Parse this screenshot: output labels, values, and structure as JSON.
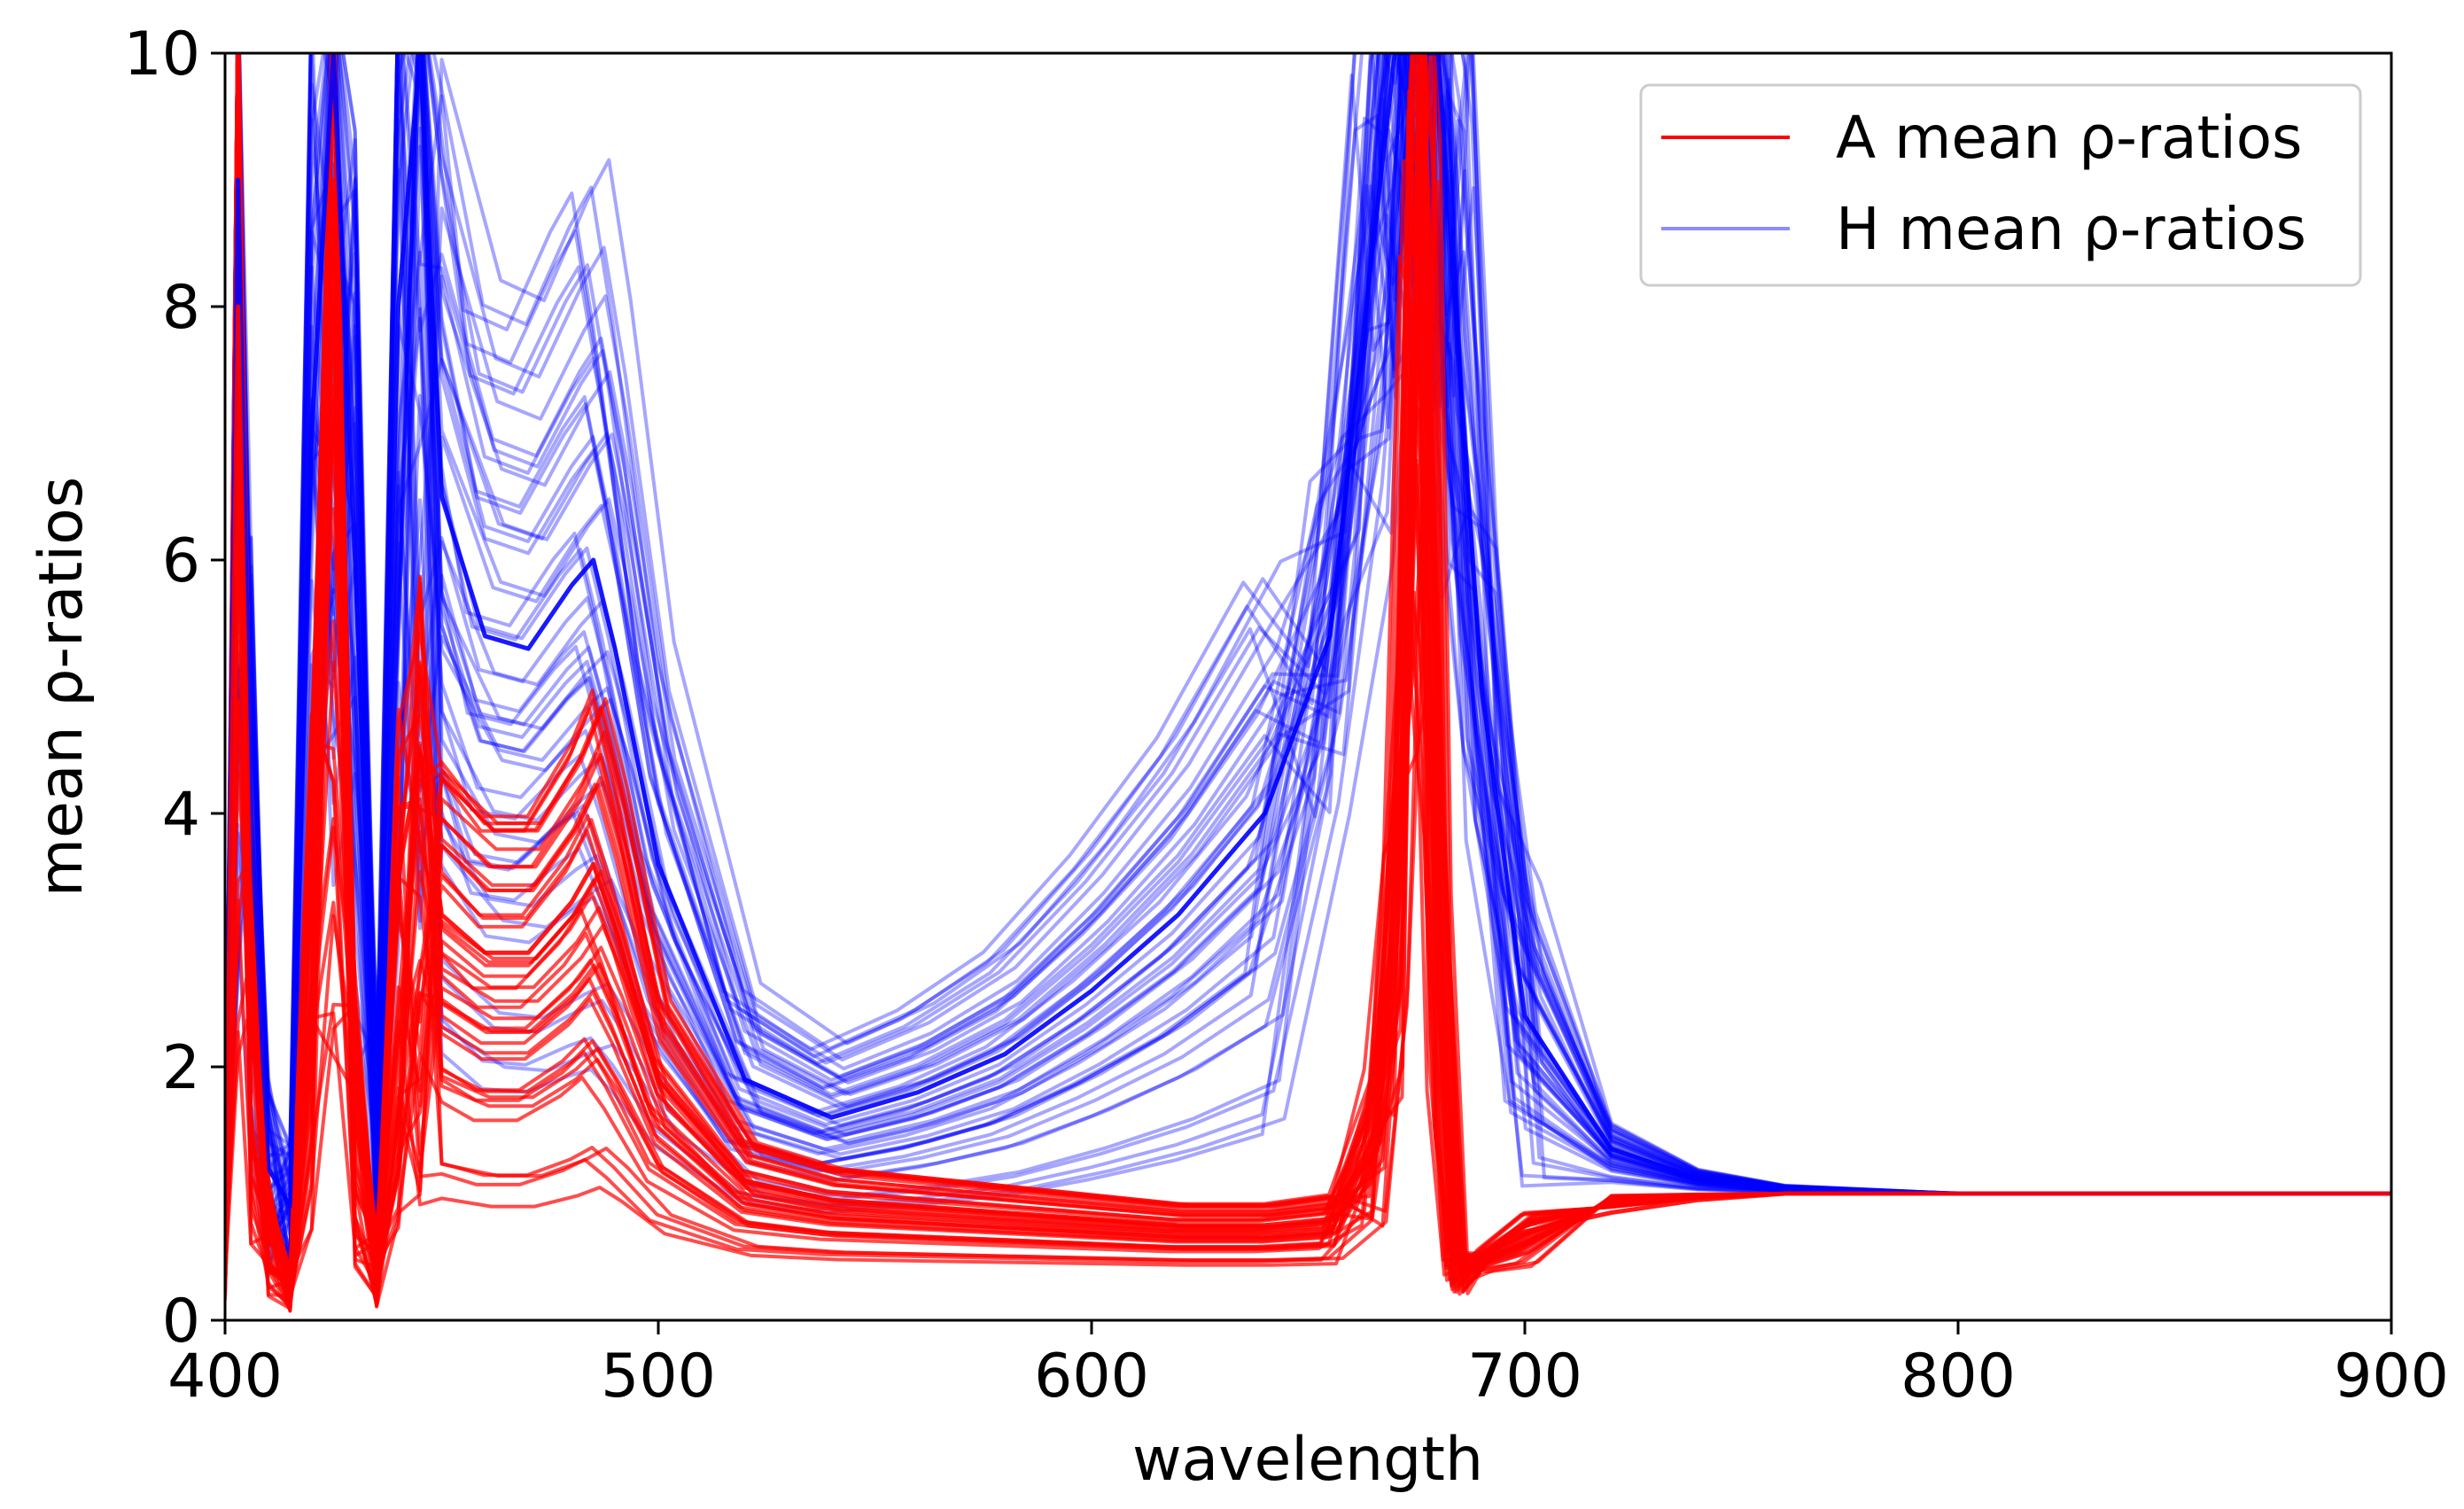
{
  "chart_data": {
    "type": "line",
    "title": "",
    "xlabel": "wavelength",
    "ylabel": "mean ρ-ratios",
    "xlim": [
      400,
      900
    ],
    "ylim": [
      0,
      10
    ],
    "xticks": [
      400,
      500,
      600,
      700,
      800,
      900
    ],
    "yticks": [
      0,
      2,
      4,
      6,
      8,
      10
    ],
    "xtick_labels": [
      "400",
      "500",
      "600",
      "700",
      "800",
      "900"
    ],
    "ytick_labels": [
      "0",
      "2",
      "4",
      "6",
      "8",
      "10"
    ],
    "grid": false,
    "legend": {
      "position": "top-right",
      "entries": [
        {
          "label": "A mean ρ-ratios",
          "color": "#ff0000"
        },
        {
          "label": "H mean ρ-ratios",
          "color": "#0000ff"
        }
      ]
    },
    "series_groups": [
      {
        "name": "A mean ρ-ratios",
        "color": "#ff0000",
        "opacity": 0.7,
        "count": 40,
        "representative": {
          "x": [
            400,
            403,
            406,
            410,
            415,
            420,
            425,
            430,
            435,
            440,
            445,
            450,
            460,
            470,
            480,
            485,
            490,
            500,
            520,
            540,
            560,
            580,
            600,
            620,
            640,
            655,
            665,
            670,
            674,
            677,
            680,
            684,
            690,
            700,
            720,
            740,
            760,
            800,
            850,
            900
          ],
          "y": [
            0.6,
            8.0,
            3.0,
            0.8,
            0.3,
            3.5,
            9.0,
            2.0,
            0.5,
            3.5,
            4.5,
            3.2,
            2.9,
            2.9,
            3.3,
            3.6,
            3.1,
            1.9,
            1.1,
            0.95,
            0.9,
            0.85,
            0.8,
            0.75,
            0.75,
            0.8,
            1.8,
            4.0,
            10.0,
            10.0,
            3.5,
            0.5,
            0.5,
            0.7,
            0.85,
            0.95,
            1.0,
            1.0,
            1.0,
            1.0
          ]
        }
      },
      {
        "name": "H mean ρ-ratios",
        "color": "#0000ff",
        "opacity": 0.35,
        "count": 50,
        "representative": {
          "x": [
            400,
            403,
            406,
            410,
            415,
            420,
            425,
            430,
            435,
            440,
            445,
            450,
            460,
            470,
            480,
            485,
            490,
            500,
            520,
            540,
            560,
            580,
            600,
            620,
            640,
            655,
            665,
            670,
            674,
            677,
            680,
            684,
            690,
            700,
            720,
            740,
            760,
            800,
            850,
            900
          ],
          "y": [
            0.8,
            9.0,
            4.0,
            1.2,
            0.9,
            7.0,
            10.0,
            6.0,
            1.5,
            8.0,
            10.0,
            6.5,
            5.4,
            5.3,
            5.8,
            6.0,
            5.3,
            3.6,
            1.9,
            1.6,
            1.8,
            2.1,
            2.6,
            3.2,
            4.0,
            5.4,
            8.5,
            10.0,
            10.0,
            10.0,
            10.0,
            8.0,
            5.0,
            2.4,
            1.35,
            1.12,
            1.04,
            1.0,
            1.0,
            1.0
          ]
        }
      }
    ]
  }
}
